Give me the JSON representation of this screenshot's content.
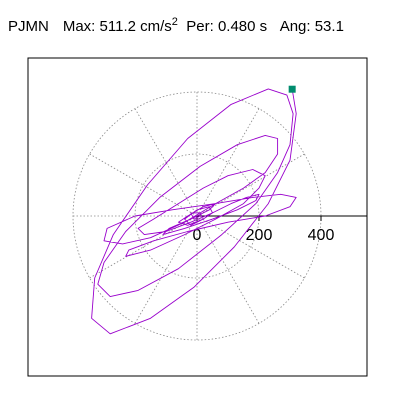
{
  "header": {
    "station": "PJMN",
    "max_label": "Max:",
    "max_value": "511.2 cm/s",
    "max_exponent": "2",
    "period_label": "Per:",
    "period_value": "0.480 s",
    "angle_label": "Ang:",
    "angle_value": "53.1"
  },
  "chart_data": {
    "type": "line",
    "title": "",
    "xlabel": "",
    "ylabel": "",
    "xlim": [
      -550,
      550
    ],
    "ylim": [
      -520,
      520
    ],
    "polar_grid": {
      "radii": [
        200,
        400
      ],
      "spoke_angles_deg": [
        0,
        30,
        60,
        90,
        120,
        150,
        180,
        210,
        240,
        270,
        300,
        330
      ],
      "line_style": "dotted"
    },
    "axis_tick_labels": [
      "0",
      "200",
      "400"
    ],
    "peak_point": {
      "x": 307,
      "y": 409
    },
    "colors": {
      "trace": "#9900cc",
      "peak_marker": "#008c6e",
      "grid": "#888888",
      "frame": "#000000",
      "axis": "#000000"
    },
    "series": [
      {
        "values": [
          {
            "x": 307,
            "y": 409
          },
          {
            "x": 320,
            "y": 330
          },
          {
            "x": 300,
            "y": 180
          },
          {
            "x": 230,
            "y": 40
          },
          {
            "x": 120,
            "y": -100
          },
          {
            "x": -10,
            "y": -230
          },
          {
            "x": -150,
            "y": -330
          },
          {
            "x": -280,
            "y": -380
          },
          {
            "x": -340,
            "y": -330
          },
          {
            "x": -330,
            "y": -200
          },
          {
            "x": -270,
            "y": -60
          },
          {
            "x": -160,
            "y": 100
          },
          {
            "x": -30,
            "y": 250
          },
          {
            "x": 110,
            "y": 360
          },
          {
            "x": 230,
            "y": 410
          },
          {
            "x": 290,
            "y": 390
          },
          {
            "x": 310,
            "y": 330
          },
          {
            "x": 300,
            "y": 230
          },
          {
            "x": 260,
            "y": 140
          },
          {
            "x": 190,
            "y": 40
          },
          {
            "x": 80,
            "y": -60
          },
          {
            "x": -60,
            "y": -170
          },
          {
            "x": -190,
            "y": -240
          },
          {
            "x": -280,
            "y": -260
          },
          {
            "x": -320,
            "y": -220
          },
          {
            "x": -300,
            "y": -150
          },
          {
            "x": -230,
            "y": -50
          },
          {
            "x": -120,
            "y": 60
          },
          {
            "x": 10,
            "y": 160
          },
          {
            "x": 130,
            "y": 230
          },
          {
            "x": 220,
            "y": 260
          },
          {
            "x": 260,
            "y": 250
          },
          {
            "x": 260,
            "y": 200
          },
          {
            "x": 220,
            "y": 140
          },
          {
            "x": 150,
            "y": 90
          },
          {
            "x": 60,
            "y": 40
          },
          {
            "x": -40,
            "y": -20
          },
          {
            "x": -150,
            "y": -70
          },
          {
            "x": -240,
            "y": -90
          },
          {
            "x": -300,
            "y": -80
          },
          {
            "x": -290,
            "y": -40
          },
          {
            "x": -200,
            "y": 0
          },
          {
            "x": -80,
            "y": 20
          },
          {
            "x": 60,
            "y": 40
          },
          {
            "x": 180,
            "y": 60
          },
          {
            "x": 270,
            "y": 70
          },
          {
            "x": 320,
            "y": 60
          },
          {
            "x": 300,
            "y": 30
          },
          {
            "x": 220,
            "y": 0
          },
          {
            "x": 100,
            "y": -20
          },
          {
            "x": -30,
            "y": -50
          },
          {
            "x": -140,
            "y": -80
          },
          {
            "x": -220,
            "y": -110
          },
          {
            "x": -230,
            "y": -130
          },
          {
            "x": -150,
            "y": -110
          },
          {
            "x": -40,
            "y": -60
          },
          {
            "x": 60,
            "y": -10
          },
          {
            "x": 150,
            "y": 40
          },
          {
            "x": 200,
            "y": 90
          },
          {
            "x": 220,
            "y": 130
          },
          {
            "x": 180,
            "y": 150
          },
          {
            "x": 100,
            "y": 130
          },
          {
            "x": 20,
            "y": 90
          },
          {
            "x": -60,
            "y": 40
          },
          {
            "x": -140,
            "y": -10
          },
          {
            "x": -190,
            "y": -40
          },
          {
            "x": -170,
            "y": -60
          },
          {
            "x": -100,
            "y": -50
          },
          {
            "x": -20,
            "y": -20
          },
          {
            "x": 50,
            "y": 10
          },
          {
            "x": 110,
            "y": 40
          },
          {
            "x": 160,
            "y": 60
          },
          {
            "x": 200,
            "y": 70
          },
          {
            "x": 190,
            "y": 50
          },
          {
            "x": 130,
            "y": 20
          },
          {
            "x": 50,
            "y": -10
          },
          {
            "x": -40,
            "y": -40
          },
          {
            "x": -110,
            "y": -60
          },
          {
            "x": -90,
            "y": -40
          },
          {
            "x": -20,
            "y": -10
          },
          {
            "x": 40,
            "y": 20
          },
          {
            "x": 60,
            "y": 40
          },
          {
            "x": 20,
            "y": 30
          },
          {
            "x": -30,
            "y": 0
          },
          {
            "x": -60,
            "y": -20
          },
          {
            "x": -30,
            "y": -30
          },
          {
            "x": 20,
            "y": -10
          },
          {
            "x": 50,
            "y": 10
          },
          {
            "x": 40,
            "y": 30
          },
          {
            "x": 0,
            "y": 20
          },
          {
            "x": -40,
            "y": -10
          },
          {
            "x": -20,
            "y": -30
          },
          {
            "x": 20,
            "y": -10
          },
          {
            "x": 10,
            "y": 10
          },
          {
            "x": -20,
            "y": 10
          },
          {
            "x": -10,
            "y": -10
          },
          {
            "x": 10,
            "y": 0
          }
        ]
      }
    ]
  }
}
